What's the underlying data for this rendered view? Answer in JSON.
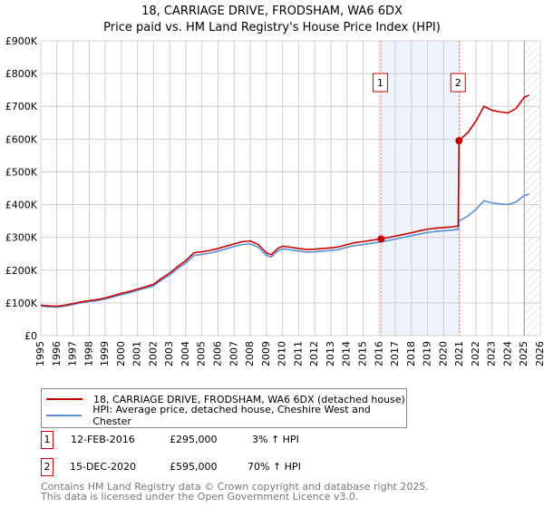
{
  "title": [
    "18, CARRIAGE DRIVE, FRODSHAM, WA6 6DX",
    "Price paid vs. HM Land Registry's House Price Index (HPI)"
  ],
  "chart_data": {
    "type": "line",
    "title": "18, CARRIAGE DRIVE, FRODSHAM, WA6 6DX - Price paid vs. HM Land Registry's House Price Index (HPI)",
    "xlim": [
      1995,
      2026
    ],
    "ylim": [
      0,
      900000
    ],
    "x_ticks": [
      "1995",
      "1996",
      "1997",
      "1998",
      "1999",
      "2000",
      "2001",
      "2002",
      "2003",
      "2004",
      "2005",
      "2006",
      "2007",
      "2008",
      "2009",
      "2010",
      "2011",
      "2012",
      "2013",
      "2014",
      "2015",
      "2016",
      "2017",
      "2018",
      "2019",
      "2020",
      "2021",
      "2022",
      "2023",
      "2024",
      "2025",
      "2026"
    ],
    "y_ticks": [
      {
        "v": 0,
        "label": "£0"
      },
      {
        "v": 100000,
        "label": "£100K"
      },
      {
        "v": 200000,
        "label": "£200K"
      },
      {
        "v": 300000,
        "label": "£300K"
      },
      {
        "v": 400000,
        "label": "£400K"
      },
      {
        "v": 500000,
        "label": "£500K"
      },
      {
        "v": 600000,
        "label": "£600K"
      },
      {
        "v": 700000,
        "label": "£700K"
      },
      {
        "v": 800000,
        "label": "£800K"
      },
      {
        "v": 900000,
        "label": "£900K"
      }
    ],
    "grid": true,
    "shaded_range": [
      2016.12,
      2020.95
    ],
    "forecast_from": 2025.0,
    "series": [
      {
        "name": "18, CARRIAGE DRIVE, FRODSHAM, WA6 6DX (detached house)",
        "color": "#cc0000",
        "x": [
          1995,
          1995.5,
          1996,
          1996.5,
          1997,
          1997.5,
          1998,
          1998.5,
          1999,
          1999.5,
          2000,
          2000.5,
          2001,
          2001.5,
          2002,
          2002.5,
          2003,
          2003.5,
          2004,
          2004.5,
          2005,
          2005.5,
          2006,
          2006.5,
          2007,
          2007.5,
          2008,
          2008.5,
          2009,
          2009.3,
          2009.7,
          2010,
          2010.5,
          2011,
          2011.5,
          2012,
          2012.5,
          2013,
          2013.5,
          2014,
          2014.5,
          2015,
          2015.5,
          2016.12,
          2016.5,
          2017,
          2017.5,
          2018,
          2018.5,
          2019,
          2019.5,
          2020,
          2020.5,
          2020.9,
          2020.95,
          2021.5,
          2022,
          2022.5,
          2023,
          2023.5,
          2024,
          2024.5,
          2025,
          2025.3
        ],
        "y": [
          93,
          91,
          90,
          93,
          98,
          103,
          107,
          110,
          115,
          122,
          129,
          135,
          142,
          149,
          157,
          175,
          191,
          211,
          229,
          253,
          256,
          260,
          266,
          273,
          280,
          287,
          289,
          278,
          253,
          247,
          266,
          273,
          270,
          266,
          263,
          264,
          266,
          268,
          271,
          278,
          284,
          287,
          291,
          295,
          299,
          304,
          309,
          314,
          320,
          325,
          328,
          330,
          332,
          335,
          595,
          620,
          655,
          700,
          688,
          683,
          680,
          694,
          728,
          734
        ]
      },
      {
        "name": "HPI: Average price, detached house, Cheshire West and Chester",
        "color": "#5b8fd4",
        "x": [
          1995,
          1995.5,
          1996,
          1996.5,
          1997,
          1997.5,
          1998,
          1998.5,
          1999,
          1999.5,
          2000,
          2000.5,
          2001,
          2001.5,
          2002,
          2002.5,
          2003,
          2003.5,
          2004,
          2004.5,
          2005,
          2005.5,
          2006,
          2006.5,
          2007,
          2007.5,
          2008,
          2008.5,
          2009,
          2009.3,
          2009.7,
          2010,
          2010.5,
          2011,
          2011.5,
          2012,
          2012.5,
          2013,
          2013.5,
          2014,
          2014.5,
          2015,
          2015.5,
          2016.12,
          2016.5,
          2017,
          2017.5,
          2018,
          2018.5,
          2019,
          2019.5,
          2020,
          2020.5,
          2020.9,
          2020.95,
          2021.5,
          2022,
          2022.5,
          2023,
          2023.5,
          2024,
          2024.5,
          2025,
          2025.3
        ],
        "y": [
          90,
          88,
          87,
          90,
          95,
          100,
          104,
          107,
          112,
          118,
          125,
          131,
          138,
          145,
          152,
          170,
          185,
          205,
          222,
          245,
          248,
          252,
          258,
          265,
          272,
          278,
          280,
          270,
          245,
          240,
          258,
          265,
          262,
          258,
          255,
          256,
          258,
          260,
          263,
          270,
          275,
          278,
          282,
          286,
          290,
          295,
          300,
          305,
          310,
          315,
          318,
          320,
          322,
          325,
          350,
          365,
          385,
          412,
          405,
          402,
          400,
          408,
          428,
          432
        ]
      }
    ],
    "y_units": "thousands GBP",
    "sales": [
      {
        "id": "1",
        "x": 2016.12,
        "price": 295000,
        "date": "12-FEB-2016",
        "price_label": "£295,000",
        "hpi": "3% ↑ HPI"
      },
      {
        "id": "2",
        "x": 2020.95,
        "price": 595000,
        "date": "15-DEC-2020",
        "price_label": "£595,000",
        "hpi": "70% ↑ HPI"
      }
    ]
  },
  "footer": [
    "Contains HM Land Registry data © Crown copyright and database right 2025.",
    "This data is licensed under the Open Government Licence v3.0."
  ]
}
